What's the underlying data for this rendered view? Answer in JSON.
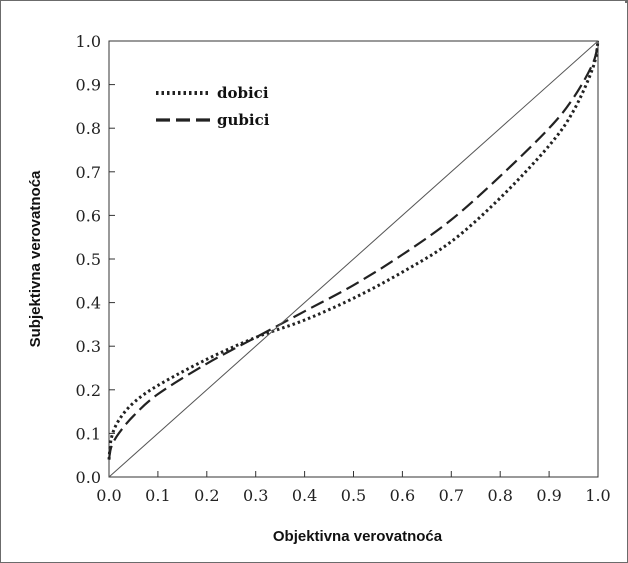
{
  "chart_data": {
    "type": "line",
    "title": "",
    "xlabel": "Objektivna verovatnoća",
    "ylabel": "Subjektivna verovatnoća",
    "xlim": [
      0,
      1
    ],
    "ylim": [
      0,
      1
    ],
    "x_ticks": [
      0.0,
      0.1,
      0.2,
      0.3,
      0.4,
      0.5,
      0.6,
      0.7,
      0.8,
      0.9,
      1.0
    ],
    "y_ticks": [
      0.0,
      0.1,
      0.2,
      0.3,
      0.4,
      0.5,
      0.6,
      0.7,
      0.8,
      0.9,
      1.0
    ],
    "x_tick_labels": [
      "0.0",
      "0.1",
      "0.2",
      "0.3",
      "0.4",
      "0.5",
      "0.6",
      "0.7",
      "0.8",
      "0.9",
      "1.0"
    ],
    "y_tick_labels": [
      "0.0",
      "0.1",
      "0.2",
      "0.3",
      "0.4",
      "0.5",
      "0.6",
      "0.7",
      "0.8",
      "0.9",
      "1.0"
    ],
    "grid": false,
    "legend_position": "top-left",
    "series": [
      {
        "name": "dobici",
        "line_style": "dotted",
        "x": [
          0.0,
          0.005,
          0.02,
          0.05,
          0.1,
          0.2,
          0.3,
          0.4,
          0.5,
          0.6,
          0.7,
          0.8,
          0.9,
          0.95,
          0.99,
          1.0
        ],
        "y": [
          0.04,
          0.09,
          0.13,
          0.17,
          0.21,
          0.27,
          0.32,
          0.36,
          0.41,
          0.47,
          0.54,
          0.64,
          0.76,
          0.84,
          0.94,
          1.0
        ]
      },
      {
        "name": "gubici",
        "line_style": "dashed",
        "x": [
          0.0,
          0.005,
          0.02,
          0.05,
          0.1,
          0.2,
          0.3,
          0.4,
          0.5,
          0.6,
          0.7,
          0.8,
          0.9,
          0.95,
          0.99,
          1.0
        ],
        "y": [
          0.04,
          0.07,
          0.1,
          0.14,
          0.19,
          0.26,
          0.32,
          0.38,
          0.44,
          0.51,
          0.59,
          0.69,
          0.8,
          0.87,
          0.95,
          1.0
        ]
      },
      {
        "name": "",
        "line_style": "solid-thin",
        "x": [
          0.0,
          1.0
        ],
        "y": [
          0.0,
          1.0
        ]
      }
    ],
    "colors": {
      "lines": "#222222",
      "diagonal": "#555555",
      "axes": "#333333"
    }
  }
}
